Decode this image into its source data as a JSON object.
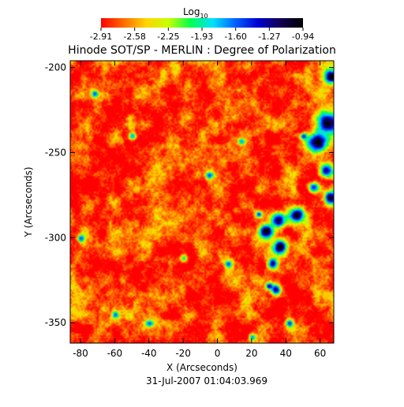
{
  "chart_data": {
    "type": "heatmap",
    "title": "Hinode SOT/SP - MERLIN : Degree of Polarization",
    "xlabel": "X (Arcseconds)",
    "ylabel": "Y (Arcseconds)",
    "footer": "31-Jul-2007 01:04:03.969",
    "xlim": [
      -86,
      68
    ],
    "ylim": [
      -362,
      -196
    ],
    "x_ticks": [
      -80,
      -60,
      -40,
      -20,
      0,
      20,
      40,
      60
    ],
    "y_ticks": [
      -200,
      -250,
      -300,
      -350
    ],
    "colorbar": {
      "label_base": "Log",
      "label_sub": "10",
      "range": [
        -2.91,
        -0.94
      ],
      "ticks": [
        "-2.91",
        "-2.58",
        "-2.25",
        "-1.93",
        "-1.60",
        "-1.27",
        "-0.94"
      ],
      "colors": [
        "#ff0000",
        "#ff6a00",
        "#ffd400",
        "#c8ff00",
        "#00ff50",
        "#00e0ff",
        "#0060ff",
        "#0000d0",
        "#120050",
        "#000000"
      ]
    },
    "field_stats": {
      "background_typical": -2.85,
      "network_high": -1.0
    },
    "high_polarization_regions": [
      {
        "x": 66,
        "y": -205,
        "r": 4,
        "peak": -1.0
      },
      {
        "x": 64,
        "y": -232,
        "r": 6,
        "peak": -0.95
      },
      {
        "x": 58,
        "y": -244,
        "r": 5,
        "peak": -1.0
      },
      {
        "x": 63,
        "y": -260,
        "r": 4,
        "peak": -1.1
      },
      {
        "x": 66,
        "y": -276,
        "r": 4,
        "peak": -1.05
      },
      {
        "x": 56,
        "y": -270,
        "r": 3,
        "peak": -1.2
      },
      {
        "x": 46,
        "y": -286,
        "r": 4,
        "peak": -1.1
      },
      {
        "x": 35,
        "y": -289,
        "r": 4,
        "peak": -1.0
      },
      {
        "x": 28,
        "y": -296,
        "r": 4,
        "peak": -1.0
      },
      {
        "x": 36,
        "y": -305,
        "r": 4,
        "peak": -1.0
      },
      {
        "x": 32,
        "y": -315,
        "r": 3,
        "peak": -1.05
      },
      {
        "x": 34,
        "y": -330,
        "r": 3,
        "peak": -1.1
      },
      {
        "x": 30,
        "y": -328,
        "r": 2,
        "peak": -1.1
      },
      {
        "x": 24,
        "y": -286,
        "r": 2,
        "peak": -1.3
      },
      {
        "x": 50,
        "y": -240,
        "r": 2,
        "peak": -1.4
      },
      {
        "x": 14,
        "y": -243,
        "r": 2,
        "peak": -1.5
      },
      {
        "x": -50,
        "y": -240,
        "r": 2,
        "peak": -1.5
      },
      {
        "x": -72,
        "y": -215,
        "r": 2,
        "peak": -1.6
      },
      {
        "x": -5,
        "y": -263,
        "r": 2,
        "peak": -1.6
      },
      {
        "x": -20,
        "y": -312,
        "r": 2,
        "peak": -1.6
      },
      {
        "x": 6,
        "y": -315,
        "r": 2,
        "peak": -1.6
      },
      {
        "x": -40,
        "y": -350,
        "r": 2,
        "peak": -1.6
      },
      {
        "x": 20,
        "y": -358,
        "r": 2,
        "peak": -1.5
      },
      {
        "x": -60,
        "y": -345,
        "r": 2,
        "peak": -1.6
      },
      {
        "x": -80,
        "y": -300,
        "r": 2,
        "peak": -1.6
      },
      {
        "x": 42,
        "y": -350,
        "r": 2,
        "peak": -1.5
      }
    ]
  }
}
